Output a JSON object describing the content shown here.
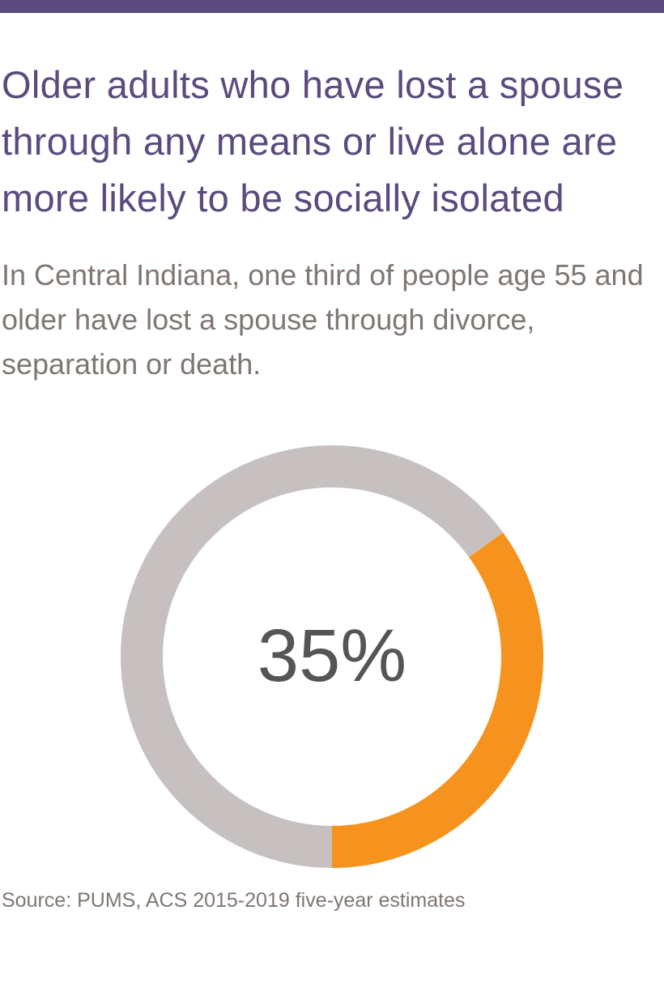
{
  "colors": {
    "accent_purple": "#5a4a7e",
    "text_gray": "#807672",
    "ring_gray": "#c6c1c0",
    "ring_orange": "#f6931f",
    "value_text": "#555555"
  },
  "header": {
    "title": "Older adults who have lost a spouse through any means or live alone are more likely to be socially isolated",
    "subtitle": "In Central Indiana, one third of people age 55 and older have lost a spouse through divorce, separation or death."
  },
  "chart_data": {
    "type": "pie",
    "style": "donut",
    "title": "",
    "value_label": "35%",
    "slices": [
      {
        "value": 35,
        "color": "#f6931f"
      },
      {
        "value": 65,
        "color": "#c6c1c0"
      }
    ]
  },
  "footer": {
    "source": "Source: PUMS, ACS 2015-2019 five-year estimates"
  }
}
